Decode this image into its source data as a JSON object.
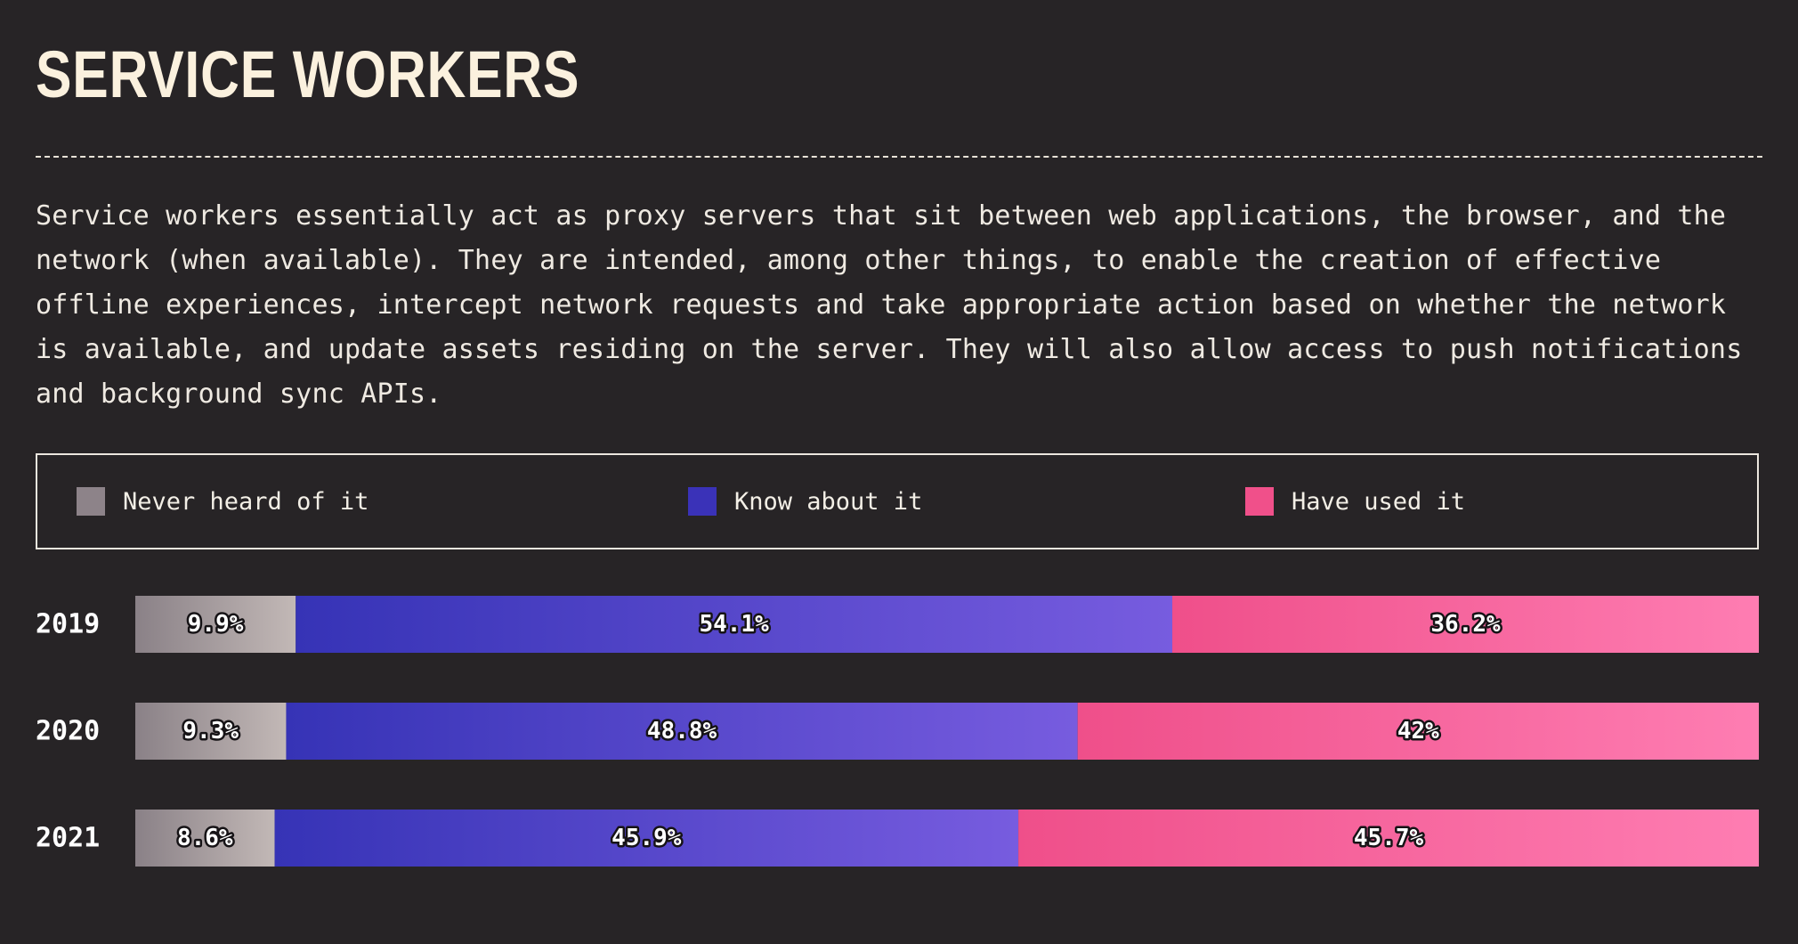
{
  "title": "SERVICE WORKERS",
  "description": "Service workers essentially act as proxy servers that sit between web applications, the browser, and the network (when available). They are intended, among other things, to enable the creation of effective offline experiences, intercept network requests and take appropriate action based on whether the network is available, and update assets residing on the server. They will also allow access to push notifications and background sync APIs.",
  "legend": [
    {
      "label": "Never heard of it",
      "color": "#8d8389"
    },
    {
      "label": "Know about it",
      "color": "#3a32b8"
    },
    {
      "label": "Have used it",
      "color": "#f0508a"
    }
  ],
  "chart_data": {
    "type": "bar",
    "orientation": "horizontal-stacked-100",
    "categories": [
      "2019",
      "2020",
      "2021"
    ],
    "series": [
      {
        "name": "Never heard of it",
        "values": [
          9.9,
          9.3,
          8.6
        ],
        "labels": [
          "9.9%",
          "9.3%",
          "8.6%"
        ],
        "color_start": "#8a8187",
        "color_end": "#c2b8b6"
      },
      {
        "name": "Know about it",
        "values": [
          54.1,
          48.8,
          45.9
        ],
        "labels": [
          "54.1%",
          "48.8%",
          "45.9%"
        ],
        "color_start": "#3633b6",
        "color_end": "#775cdf"
      },
      {
        "name": "Have used it",
        "values": [
          36.2,
          42,
          45.7
        ],
        "labels": [
          "36.2%",
          "42%",
          "45.7%"
        ],
        "color_start": "#ef4f8a",
        "color_end": "#fe7db2"
      }
    ],
    "xlim": [
      0,
      100
    ],
    "legend_position": "top",
    "grid": false
  }
}
